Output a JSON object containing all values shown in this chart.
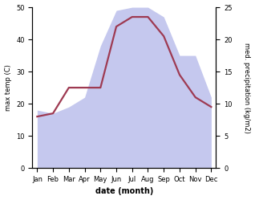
{
  "months": [
    "Jan",
    "Feb",
    "Mar",
    "Apr",
    "May",
    "Jun",
    "Jul",
    "Aug",
    "Sep",
    "Oct",
    "Nov",
    "Dec"
  ],
  "temperature": [
    16,
    17,
    25,
    25,
    25,
    44,
    47,
    47,
    41,
    29,
    22,
    19
  ],
  "precipitation": [
    18,
    17,
    19,
    22,
    38,
    49,
    50,
    50,
    47,
    35,
    35,
    22
  ],
  "temp_color": "#9e3a52",
  "precip_fill_color": "#c5c8ee",
  "temp_ylim": [
    0,
    50
  ],
  "precip_ylim": [
    0,
    25
  ],
  "xlabel": "date (month)",
  "ylabel_left": "max temp (C)",
  "ylabel_right": "med. precipitation (kg/m2)",
  "bg_color": "#ffffff",
  "line_width": 1.6
}
